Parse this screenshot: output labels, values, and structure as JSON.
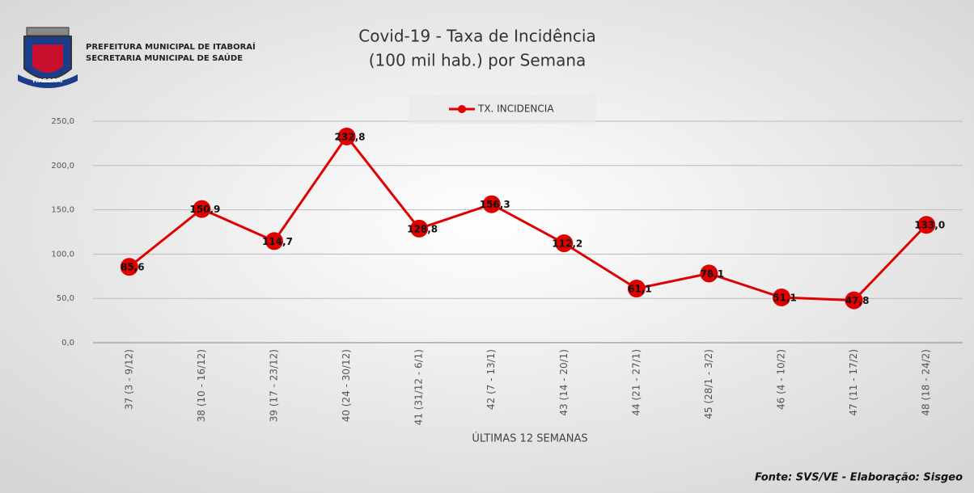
{
  "header": {
    "lines": [
      "PREFEITURA MUNICIPAL DE ITABORAÍ",
      "SECRETARIA MUNICIPAL DE SAÚDE"
    ],
    "logo_text": "ITABORAÍ"
  },
  "chart_data": {
    "type": "line",
    "title": [
      "Covid-19 - Taxa de Incidência",
      "(100 mil hab.) por Semana"
    ],
    "x_label": "ÚLTIMAS 12 SEMANAS",
    "legend_position": "top",
    "categories": [
      "37 (3 - 9/12)",
      "38 (10 - 16/12)",
      "39 (17 - 23/12)",
      "40 (24 - 30/12)",
      "41 (31/12 - 6/1)",
      "42 (7 - 13/1)",
      "43 (14 - 20/1)",
      "44 (21 - 27/1)",
      "45 (28/1 - 3/2)",
      "46 (4 - 10/2)",
      "47 (11 - 17/2)",
      "48 (18 - 24/2)"
    ],
    "series": [
      {
        "name": "TX. INCIDENCIA",
        "color": "#e00000",
        "values": [
          85.6,
          150.9,
          114.7,
          232.8,
          128.8,
          156.3,
          112.2,
          61.1,
          78.1,
          51.1,
          47.8,
          133.0
        ],
        "value_labels": [
          "85,6",
          "150,9",
          "114,7",
          "232,8",
          "128,8",
          "156,3",
          "112,2",
          "61,1",
          "78,1",
          "51,1",
          "47,8",
          "133,0"
        ]
      }
    ],
    "ylim": [
      0,
      250
    ],
    "yticks": [
      {
        "value": 0,
        "label": "0,0"
      },
      {
        "value": 50,
        "label": "50,0"
      },
      {
        "value": 100,
        "label": "100,0"
      },
      {
        "value": 150,
        "label": "150,0"
      },
      {
        "value": 200,
        "label": "200,0"
      },
      {
        "value": 250,
        "label": "250,0"
      }
    ],
    "grid": true
  },
  "footer": {
    "source": "Fonte: SVS/VE - Elaboração: Sisgeo"
  }
}
